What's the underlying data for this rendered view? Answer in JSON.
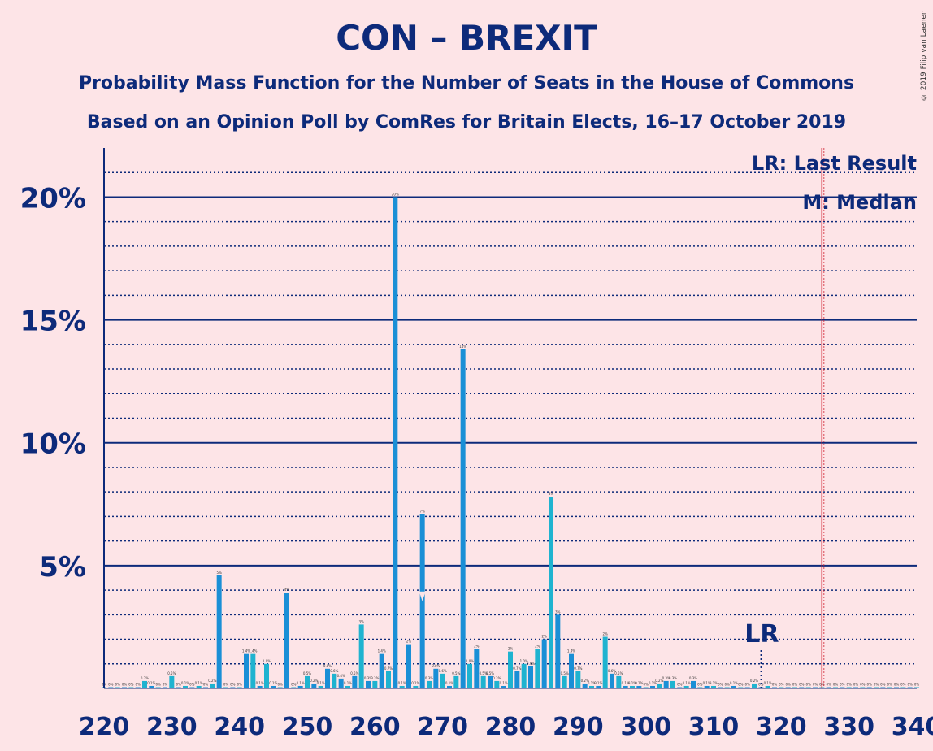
{
  "title": "CON – BREXIT",
  "subtitle1": "Probability Mass Function for the Number of Seats in the House of Commons",
  "subtitle2": "Based on an Opinion Poll by ComRes for Britain Elects, 16–17 October 2019",
  "copyright": "© 2019 Filip van Laenen",
  "legend": {
    "lr": "LR: Last Result",
    "m": "M: Median"
  },
  "lr_marker": "LR",
  "colors": {
    "background": "#fde4e7",
    "axis": "#0d2a7a",
    "bar_a": "#1fb3d0",
    "bar_b": "#1a8fd6",
    "majority_line": "#d0202f"
  },
  "chart_data": {
    "type": "bar",
    "xlabel": "",
    "ylabel": "",
    "xlim": [
      220,
      340
    ],
    "xticks": [
      220,
      230,
      240,
      250,
      260,
      270,
      280,
      290,
      300,
      310,
      320,
      330,
      340
    ],
    "ylim": [
      0,
      22
    ],
    "yticks": [
      {
        "value": 5,
        "label": "5%"
      },
      {
        "value": 10,
        "label": "10%"
      },
      {
        "value": 15,
        "label": "15%"
      },
      {
        "value": 20,
        "label": "20%"
      }
    ],
    "majority_line": 326,
    "last_result": 317,
    "median": 267,
    "seats": [
      220,
      221,
      222,
      223,
      224,
      225,
      226,
      227,
      228,
      229,
      230,
      231,
      232,
      233,
      234,
      235,
      236,
      237,
      238,
      239,
      240,
      241,
      242,
      243,
      244,
      245,
      246,
      247,
      248,
      249,
      250,
      251,
      252,
      253,
      254,
      255,
      256,
      257,
      258,
      259,
      260,
      261,
      262,
      263,
      264,
      265,
      266,
      267,
      268,
      269,
      270,
      271,
      272,
      273,
      274,
      275,
      276,
      277,
      278,
      279,
      280,
      281,
      282,
      283,
      284,
      285,
      286,
      287,
      288,
      289,
      290,
      291,
      292,
      293,
      294,
      295,
      296,
      297,
      298,
      299,
      300,
      301,
      302,
      303,
      304,
      305,
      306,
      307,
      308,
      309,
      310,
      311,
      312,
      313,
      314,
      315,
      316,
      317,
      318,
      319,
      320,
      321,
      322,
      323,
      324,
      325,
      326,
      327,
      328,
      329,
      330,
      331,
      332,
      333,
      334,
      335,
      336,
      337,
      338,
      339,
      340
    ],
    "values": [
      0,
      0,
      0,
      0,
      0,
      0,
      0.3,
      0.1,
      0,
      0,
      0.5,
      0,
      0.1,
      0,
      0.1,
      0,
      0.2,
      4.6,
      0,
      0,
      0,
      1.4,
      1.4,
      0.1,
      1.0,
      0.1,
      0,
      3.9,
      0,
      0.1,
      0.5,
      0.2,
      0.1,
      0.8,
      0.6,
      0.4,
      0.1,
      0.5,
      2.6,
      0.3,
      0.3,
      1.4,
      0.7,
      20.0,
      0.1,
      1.8,
      0.1,
      7.1,
      0.3,
      0.8,
      0.6,
      0.1,
      0.5,
      13.8,
      1.0,
      1.6,
      0.5,
      0.5,
      0.3,
      0.1,
      1.5,
      0.7,
      1.0,
      0.9,
      1.6,
      2.0,
      7.8,
      3.0,
      0.5,
      1.4,
      0.7,
      0.2,
      0.1,
      0.1,
      2.1,
      0.6,
      0.5,
      0.1,
      0.1,
      0.1,
      0,
      0.1,
      0.2,
      0.3,
      0.3,
      0,
      0.1,
      0.3,
      0,
      0.1,
      0.1,
      0,
      0,
      0.1,
      0,
      0,
      0.2,
      0,
      0.1,
      0,
      0,
      0,
      0,
      0,
      0,
      0,
      0,
      0,
      0,
      0,
      0,
      0,
      0,
      0,
      0,
      0,
      0,
      0,
      0,
      0,
      0
    ],
    "value_labels": [
      "0%",
      "0%",
      "0%",
      "0%",
      "0%",
      "0%",
      "0.3%",
      "0.1%",
      "0%",
      "0%",
      "0.5%",
      "0%",
      "0.1%",
      "0%",
      "0.1%",
      "0%",
      "0.2%",
      "5%",
      "0%",
      "0%",
      "0%",
      "1.4%",
      "1.4%",
      "0.1%",
      "1.0%",
      "0.1%",
      "0%",
      "4%",
      "0%",
      "0.1%",
      "0.5%",
      "0.2%",
      "0.1%",
      "0.8%",
      "0.6%",
      "0.4%",
      "0.1%",
      "0.5%",
      "3%",
      "0.3%",
      "0.3%",
      "1.4%",
      "0.7%",
      "20%",
      "0.1%",
      "2%",
      "0.1%",
      "7%",
      "0.3%",
      "0.8%",
      "0.6%",
      "0.1%",
      "0.5%",
      "14%",
      "1.0%",
      "2%",
      "0.5%",
      "0.5%",
      "0.3%",
      "0.1%",
      "2%",
      "0.7%",
      "1.0%",
      "0.9%",
      "2%",
      "2%",
      "8%",
      "3%",
      "0.5%",
      "1.4%",
      "0.7%",
      "0.2%",
      "0.1%",
      "0.1%",
      "2%",
      "0.6%",
      "0.5%",
      "0.1%",
      "0.1%",
      "0.1%",
      "0%",
      "0.1%",
      "0.2%",
      "0.3%",
      "0.3%",
      "0%",
      "0.1%",
      "0.3%",
      "0%",
      "0.1%",
      "0.1%",
      "0%",
      "0%",
      "0.1%",
      "0%",
      "0%",
      "0.2%",
      "0%",
      "0.1%",
      "0%",
      "0%",
      "0%",
      "0%",
      "0%",
      "0%",
      "0%",
      "0%",
      "0%",
      "0%",
      "0%",
      "0%",
      "0%",
      "0%",
      "0%",
      "0%",
      "0%",
      "0%",
      "0%",
      "0%",
      "0%",
      "0%"
    ]
  }
}
